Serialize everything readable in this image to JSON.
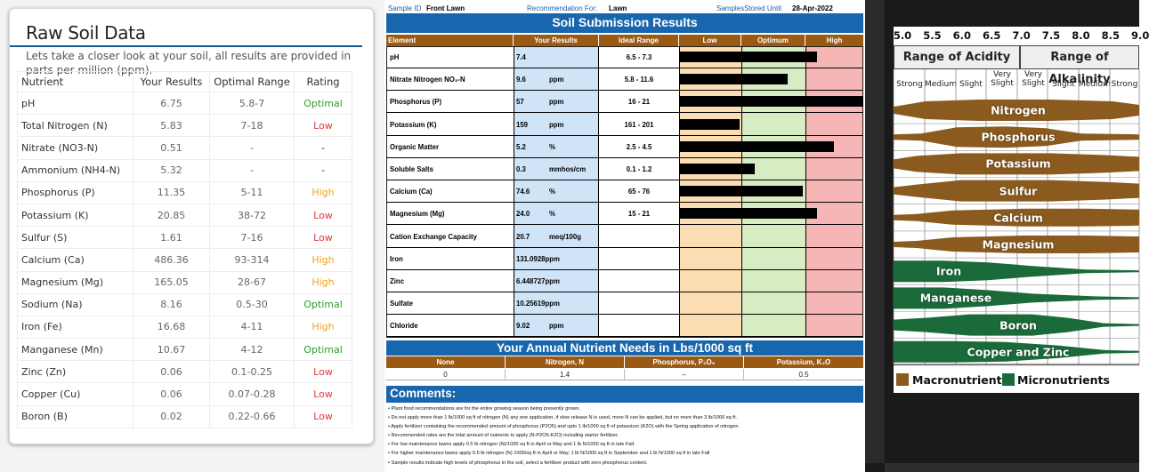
{
  "raw": {
    "title": "Raw Soil Data",
    "intro": "Lets take a closer look at your soil, all results are provided in parts per million (ppm).",
    "headers": [
      "Nutrient",
      "Your Results",
      "Optimal Range",
      "Rating"
    ],
    "rows": [
      {
        "nutrient": "pH",
        "result": "6.75",
        "optimal": "5.8-7",
        "rating": "Optimal"
      },
      {
        "nutrient": "Total Nitrogen (N)",
        "result": "5.83",
        "optimal": "7-18",
        "rating": "Low"
      },
      {
        "nutrient": "Nitrate (NO3-N)",
        "result": "0.51",
        "optimal": "-",
        "rating": "-"
      },
      {
        "nutrient": "Ammonium (NH4-N)",
        "result": "5.32",
        "optimal": "-",
        "rating": "-"
      },
      {
        "nutrient": "Phosphorus (P)",
        "result": "11.35",
        "optimal": "5-11",
        "rating": "High"
      },
      {
        "nutrient": "Potassium (K)",
        "result": "20.85",
        "optimal": "38-72",
        "rating": "Low"
      },
      {
        "nutrient": "Sulfur (S)",
        "result": "1.61",
        "optimal": "7-16",
        "rating": "Low"
      },
      {
        "nutrient": "Calcium (Ca)",
        "result": "486.36",
        "optimal": "93-314",
        "rating": "High"
      },
      {
        "nutrient": "Magnesium (Mg)",
        "result": "165.05",
        "optimal": "28-67",
        "rating": "High"
      },
      {
        "nutrient": "Sodium (Na)",
        "result": "8.16",
        "optimal": "0.5-30",
        "rating": "Optimal"
      },
      {
        "nutrient": "Iron (Fe)",
        "result": "16.68",
        "optimal": "4-11",
        "rating": "High"
      },
      {
        "nutrient": "Manganese (Mn)",
        "result": "10.67",
        "optimal": "4-12",
        "rating": "Optimal"
      },
      {
        "nutrient": "Zinc (Zn)",
        "result": "0.06",
        "optimal": "0.1-0.25",
        "rating": "Low"
      },
      {
        "nutrient": "Copper (Cu)",
        "result": "0.06",
        "optimal": "0.07-0.28",
        "rating": "Low"
      },
      {
        "nutrient": "Boron (B)",
        "result": "0.02",
        "optimal": "0.22-0.66",
        "rating": "Low"
      }
    ],
    "rating_colors": {
      "Optimal": "#2e9e2e",
      "Low": "#e03a3a",
      "High": "#f0a21a",
      "-": "#333333"
    }
  },
  "submission": {
    "sample_id_label": "Sample ID",
    "sample_id": "Front Lawn",
    "recommendation_label": "Recommendation For:",
    "recommendation": "Lawn",
    "stored_label": "SamplesStored Until",
    "stored_date": "28-Apr-2022",
    "title": "Soil Submission Results",
    "headers": [
      "Element",
      "Your Results",
      "Ideal Range",
      "Low",
      "Optimum",
      "High"
    ],
    "level_scale": "fraction of Low+Optimum+High band width (0 = left edge of Low, 1 = right edge of High)",
    "rows": [
      {
        "element": "pH",
        "result": "7.4",
        "unit": "",
        "ideal": "6.5 - 7.3",
        "level": 0.75
      },
      {
        "element": "Nitrate Nitrogen NO₃-N",
        "result": "9.6",
        "unit": "ppm",
        "ideal": "5.8 - 11.6",
        "level": 0.59
      },
      {
        "element": "Phosphorus (P)",
        "result": "57",
        "unit": "ppm",
        "ideal": "16 - 21",
        "level": 1.0
      },
      {
        "element": "Potassium (K)",
        "result": "159",
        "unit": "ppm",
        "ideal": "161 - 201",
        "level": 0.33
      },
      {
        "element": "Organic Matter",
        "result": "5.2",
        "unit": "%",
        "ideal": "2.5 - 4.5",
        "level": 0.84
      },
      {
        "element": "Soluble Salts",
        "result": "0.3",
        "unit": "mmhos/cm",
        "ideal": "0.1 - 1.2",
        "level": 0.41
      },
      {
        "element": "Calcium (Ca)",
        "result": "74.6",
        "unit": "%",
        "ideal": "65 - 76",
        "level": 0.67
      },
      {
        "element": "Magnesium (Mg)",
        "result": "24.0",
        "unit": "%",
        "ideal": "15 - 21",
        "level": 0.75
      },
      {
        "element": "Cation Exchange Capacity",
        "result": "20.7",
        "unit": "meq/100g",
        "ideal": "",
        "level": null
      },
      {
        "element": "Iron",
        "result": "131.0928ppm",
        "unit": "",
        "ideal": "",
        "level": null
      },
      {
        "element": "Zinc",
        "result": "6.448727ppm",
        "unit": "",
        "ideal": "",
        "level": null
      },
      {
        "element": "Sulfate",
        "result": "10.25619ppm",
        "unit": "",
        "ideal": "",
        "level": null
      },
      {
        "element": "Chloride",
        "result": "9.02",
        "unit": "ppm",
        "ideal": "",
        "level": null
      }
    ],
    "needs_title": "Your Annual Nutrient Needs in  Lbs/1000 sq ft",
    "needs_headers": [
      "None",
      "Nitrogen, N",
      "Phosphorus, P₂O₅",
      "Potassium, K₂O"
    ],
    "needs_values": [
      "0",
      "1.4",
      "--",
      "0.5"
    ],
    "comments_title": "Comments:",
    "comments": [
      "• Plant food recommendations are for the entire growing season being presently grown.",
      "• Do not apply more than 1 lb/1000 sq ft of nitrogen (N) any one application, if slow release N is used, more N can be applied, but no more than 3 lb/1000 sq ft.",
      "• Apply fertilizer containing the recommended amount of phosphorus (P2O5) and upto 1 lb/1000 sq ft of potassium (K2O) with the Spring application of nitrogen.",
      "• Recommended rates are the total amount of nutrients to apply (N-P2O5-K2O) including starter fertilizer.",
      "• For low maintenance lawns apply 0.5 lb nitrogen (N)/1000 sq ft in April or May and 1 lb N/1000 sq ft in late Fall.",
      "• For higher maintenance lawns apply 0.5 lb nitrogen (N) 1000/sq ft in April or May, 1 lb N/1000 sq ft in September and 1 lb N/1000 sq ft in late Fall",
      "• Sample results indicate high levels of phosphorus in the soil, select a fertilizer product with zero phosphorus content."
    ],
    "colors": {
      "banner": "#1866ad",
      "header": "#9a5a14",
      "low": "#fcdcb3",
      "optimum": "#d7ecc2",
      "high": "#f7b6b6",
      "results": "#cfe4f7"
    }
  },
  "ph_chart": {
    "ph_ticks": [
      "5.0",
      "5.5",
      "6.0",
      "6.5",
      "7.0",
      "7.5",
      "8.0",
      "8.5",
      "9.0"
    ],
    "acidity_title": "Range of Acidity",
    "alkalinity_title": "Range of Alkalinity",
    "strengths": [
      "Strong",
      "Medium",
      "Slight",
      "Very\nSlight",
      "Very\nSlight",
      "Slight",
      "Medium",
      "Strong"
    ],
    "bands": [
      {
        "name": "Nitrogen",
        "type": "macro"
      },
      {
        "name": "Phosphorus",
        "type": "macro"
      },
      {
        "name": "Potassium",
        "type": "macro"
      },
      {
        "name": "Sulfur",
        "type": "macro"
      },
      {
        "name": "Calcium",
        "type": "macro"
      },
      {
        "name": "Magnesium",
        "type": "macro"
      },
      {
        "name": "Iron",
        "type": "micro"
      },
      {
        "name": "Manganese",
        "type": "micro"
      },
      {
        "name": "Boron",
        "type": "micro"
      },
      {
        "name": "Copper and Zinc",
        "type": "micro"
      }
    ],
    "legend": [
      {
        "label": "Macronutrients",
        "color": "#8b5a1e"
      },
      {
        "label": "Micronutrients",
        "color": "#1a6a3a"
      }
    ]
  }
}
